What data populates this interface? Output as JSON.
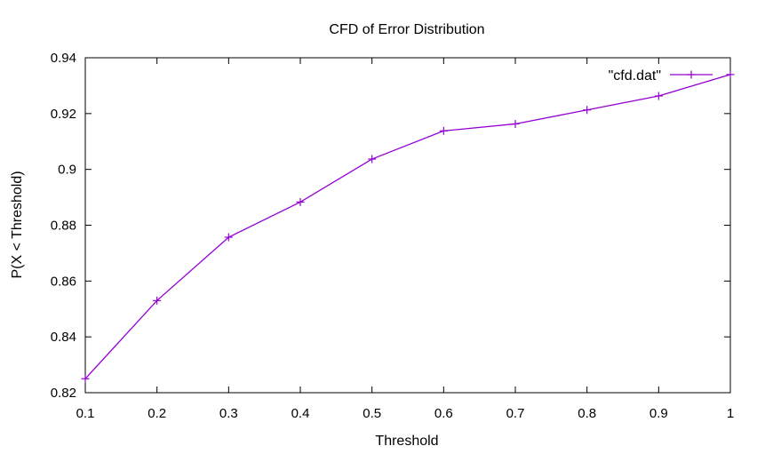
{
  "chart_data": {
    "type": "line",
    "title": "CFD of Error Distribution",
    "xlabel": "Threshold",
    "ylabel": "P(X < Threshold)",
    "xlim": [
      0.1,
      1
    ],
    "ylim": [
      0.82,
      0.94
    ],
    "x_ticks": [
      "0.1",
      "0.2",
      "0.3",
      "0.4",
      "0.5",
      "0.6",
      "0.7",
      "0.8",
      "0.9",
      "1"
    ],
    "y_ticks": [
      "0.82",
      "0.84",
      "0.86",
      "0.88",
      "0.9",
      "0.92",
      "0.94"
    ],
    "grid": false,
    "legend_position": "top-right",
    "series": [
      {
        "name": "\"cfd.dat\"",
        "color": "#9400d3",
        "marker": "plus",
        "x": [
          0.1,
          0.2,
          0.3,
          0.4,
          0.5,
          0.6,
          0.7,
          0.8,
          0.9,
          1.0
        ],
        "y": [
          0.825,
          0.853,
          0.8757,
          0.8883,
          0.9037,
          0.9138,
          0.9163,
          0.9213,
          0.9263,
          0.934
        ]
      }
    ]
  }
}
